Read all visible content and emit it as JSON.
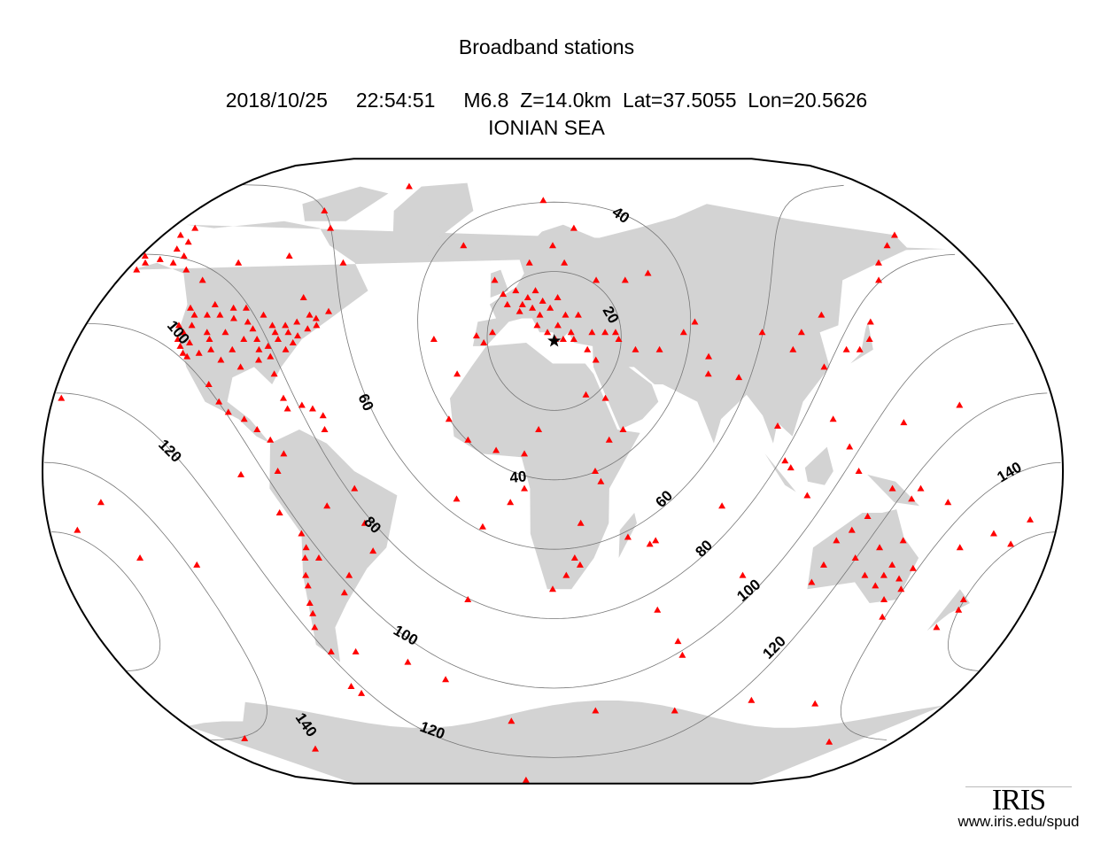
{
  "title": "Broadband stations",
  "event": {
    "date": "2018/10/25",
    "time": "22:54:51",
    "magnitude": "M6.8",
    "depth": "Z=14.0km",
    "lat_label": "Lat=37.5055",
    "lon_label": "Lon=20.5626",
    "region": "IONIAN SEA",
    "lat": 37.5055,
    "lon": 20.5626
  },
  "map": {
    "projection": "Winkel Tripel (world, centered ~20E)",
    "land_color": "#d3d3d3",
    "station_color": "#ff0000",
    "station_symbol": "triangle",
    "epicenter_symbol": "star",
    "contour_distances_deg": [
      20,
      40,
      60,
      80,
      100,
      120,
      140,
      160
    ],
    "contour_labels": [
      "20",
      "40",
      "40",
      "60",
      "60",
      "80",
      "80",
      "100",
      "100",
      "100",
      "120",
      "120",
      "120",
      "140",
      "140"
    ]
  },
  "stations": [
    [
      -122,
      38
    ],
    [
      -118,
      34
    ],
    [
      -120,
      36
    ],
    [
      -116,
      33
    ],
    [
      -112,
      40
    ],
    [
      -105,
      40
    ],
    [
      -100,
      35
    ],
    [
      -95,
      30
    ],
    [
      -90,
      35
    ],
    [
      -85,
      33
    ],
    [
      -80,
      35
    ],
    [
      -77,
      39
    ],
    [
      -74,
      41
    ],
    [
      -71,
      42
    ],
    [
      -88,
      42
    ],
    [
      -93,
      45
    ],
    [
      -97,
      38
    ],
    [
      -110,
      45
    ],
    [
      -115,
      45
    ],
    [
      -120,
      45
    ],
    [
      -123,
      47
    ],
    [
      -108,
      35
    ],
    [
      -103,
      32
    ],
    [
      -82,
      28
    ],
    [
      -84,
      38
    ],
    [
      -79,
      43
    ],
    [
      -86,
      40
    ],
    [
      -92,
      38
    ],
    [
      -98,
      43
    ],
    [
      -106,
      47
    ],
    [
      -75,
      45
    ],
    [
      -68,
      46
    ],
    [
      -117,
      37
    ],
    [
      -121,
      40
    ],
    [
      -112,
      34
    ],
    [
      -95,
      41
    ],
    [
      -89,
      32
    ],
    [
      -81,
      40
    ],
    [
      -78,
      37
    ],
    [
      -72,
      44
    ],
    [
      -101,
      47
    ],
    [
      -104,
      44
    ],
    [
      -87,
      36
    ],
    [
      -83,
      42
    ],
    [
      -119,
      42
    ],
    [
      -110,
      38
    ],
    [
      -114,
      48
    ],
    [
      -124,
      42
    ],
    [
      -150,
      61
    ],
    [
      -147,
      64
    ],
    [
      -155,
      60
    ],
    [
      -158,
      62
    ],
    [
      -145,
      66
    ],
    [
      -141,
      62
    ],
    [
      -135,
      58
    ],
    [
      -152,
      68
    ],
    [
      -156,
      58
    ],
    [
      -149,
      70
    ],
    [
      -143,
      60
    ],
    [
      -115,
      60
    ],
    [
      -95,
      62
    ],
    [
      -85,
      70
    ],
    [
      -70,
      60
    ],
    [
      -62,
      82
    ],
    [
      -95,
      75
    ],
    [
      -125,
      55
    ],
    [
      -80,
      50
    ],
    [
      -100,
      20
    ],
    [
      -105,
      25
    ],
    [
      -96,
      17
    ],
    [
      -90,
      15
    ],
    [
      -85,
      12
    ],
    [
      -80,
      9
    ],
    [
      -75,
      18
    ],
    [
      -66,
      18
    ],
    [
      -62,
      16
    ],
    [
      -70,
      19
    ],
    [
      -61,
      12
    ],
    [
      -77,
      21
    ],
    [
      -77,
      -12
    ],
    [
      -70,
      -18
    ],
    [
      -70,
      -25
    ],
    [
      -71,
      -33
    ],
    [
      -72,
      -38
    ],
    [
      -73,
      -45
    ],
    [
      -70,
      -52
    ],
    [
      -65,
      -25
    ],
    [
      -60,
      -10
    ],
    [
      -50,
      -5
    ],
    [
      -47,
      -15
    ],
    [
      -45,
      -23
    ],
    [
      -55,
      -30
    ],
    [
      -58,
      -35
    ],
    [
      -77,
      0
    ],
    [
      -75,
      5
    ],
    [
      -90,
      -1
    ],
    [
      -68,
      -62
    ],
    [
      -71,
      -30
    ],
    [
      -72,
      -41
    ],
    [
      -69,
      -22
    ],
    [
      -9,
      39
    ],
    [
      -3,
      40
    ],
    [
      2,
      48
    ],
    [
      7,
      46
    ],
    [
      10,
      50
    ],
    [
      13,
      52
    ],
    [
      15,
      45
    ],
    [
      19,
      47
    ],
    [
      22,
      50
    ],
    [
      25,
      45
    ],
    [
      24,
      38
    ],
    [
      21,
      38
    ],
    [
      27,
      40
    ],
    [
      30,
      45
    ],
    [
      35,
      40
    ],
    [
      40,
      40
    ],
    [
      44,
      40
    ],
    [
      -4,
      55
    ],
    [
      0,
      51
    ],
    [
      10,
      60
    ],
    [
      25,
      60
    ],
    [
      20,
      65
    ],
    [
      30,
      70
    ],
    [
      15,
      78
    ],
    [
      -20,
      65
    ],
    [
      -25,
      38
    ],
    [
      -15,
      28
    ],
    [
      38,
      55
    ],
    [
      50,
      55
    ],
    [
      60,
      57
    ],
    [
      45,
      38
    ],
    [
      51,
      35
    ],
    [
      60,
      35
    ],
    [
      70,
      40
    ],
    [
      75,
      43
    ],
    [
      78,
      33
    ],
    [
      77,
      28
    ],
    [
      88,
      27
    ],
    [
      100,
      40
    ],
    [
      110,
      35
    ],
    [
      120,
      30
    ],
    [
      115,
      40
    ],
    [
      125,
      45
    ],
    [
      130,
      35
    ],
    [
      135,
      35
    ],
    [
      140,
      38
    ],
    [
      143,
      43
    ],
    [
      155,
      55
    ],
    [
      160,
      60
    ],
    [
      170,
      65
    ],
    [
      178,
      68
    ],
    [
      100,
      13
    ],
    [
      102,
      3
    ],
    [
      110,
      -7
    ],
    [
      120,
      15
    ],
    [
      125,
      7
    ],
    [
      128,
      0
    ],
    [
      140,
      -5
    ],
    [
      147,
      -8
    ],
    [
      104,
      1
    ],
    [
      5,
      52
    ],
    [
      8,
      48
    ],
    [
      12,
      47
    ],
    [
      16,
      49
    ],
    [
      22,
      42
    ],
    [
      28,
      38
    ],
    [
      33,
      35
    ],
    [
      14,
      42
    ],
    [
      18,
      40
    ],
    [
      -6,
      37
    ],
    [
      -17,
      15
    ],
    [
      -10,
      9
    ],
    [
      0,
      6
    ],
    [
      10,
      5
    ],
    [
      15,
      12
    ],
    [
      35,
      0
    ],
    [
      37,
      -3
    ],
    [
      30,
      -15
    ],
    [
      28,
      -25
    ],
    [
      25,
      -30
    ],
    [
      20,
      -34
    ],
    [
      30,
      -27
    ],
    [
      40,
      9
    ],
    [
      45,
      12
    ],
    [
      32,
      22
    ],
    [
      10,
      -5
    ],
    [
      47,
      -19
    ],
    [
      55,
      -21
    ],
    [
      57,
      -20
    ],
    [
      5,
      -9
    ],
    [
      36,
      32
    ],
    [
      39,
      21
    ],
    [
      116,
      -32
    ],
    [
      122,
      -20
    ],
    [
      130,
      -25
    ],
    [
      135,
      -30
    ],
    [
      140,
      -33
    ],
    [
      145,
      -37
    ],
    [
      150,
      -34
    ],
    [
      152,
      -28
    ],
    [
      146,
      -20
    ],
    [
      132,
      -13
    ],
    [
      138,
      -22
    ],
    [
      144,
      -27
    ],
    [
      147,
      -42
    ],
    [
      175,
      -40
    ],
    [
      175,
      -37
    ],
    [
      170,
      -45
    ],
    [
      167,
      -22
    ],
    [
      119,
      -27
    ],
    [
      127,
      -17
    ],
    [
      142,
      -30
    ],
    [
      148,
      -31
    ],
    [
      -157,
      21
    ],
    [
      -150,
      -17
    ],
    [
      -170,
      -14
    ],
    [
      -130,
      -25
    ],
    [
      -110,
      -27
    ],
    [
      -140,
      -9
    ],
    [
      -175,
      -21
    ],
    [
      178,
      -18
    ],
    [
      160,
      -9
    ],
    [
      166,
      19
    ],
    [
      145,
      14
    ],
    [
      150,
      -5
    ],
    [
      73,
      -53
    ],
    [
      70,
      -49
    ],
    [
      -14,
      -8
    ],
    [
      -5,
      -16
    ],
    [
      -12,
      -37
    ],
    [
      -26,
      -60
    ],
    [
      -60,
      -52
    ],
    [
      -40,
      -55
    ],
    [
      80,
      -10
    ],
    [
      90,
      -30
    ],
    [
      60,
      -40
    ],
    [
      0,
      -72
    ],
    [
      40,
      -69
    ],
    [
      77,
      -69
    ],
    [
      110,
      -66
    ],
    [
      140,
      -67
    ],
    [
      166,
      -78
    ],
    [
      -65,
      -64
    ],
    [
      -140,
      -77
    ],
    [
      0,
      -89
    ],
    [
      -110,
      -80
    ]
  ],
  "logo": {
    "text": "IRIS",
    "url": "www.iris.edu/spud"
  }
}
